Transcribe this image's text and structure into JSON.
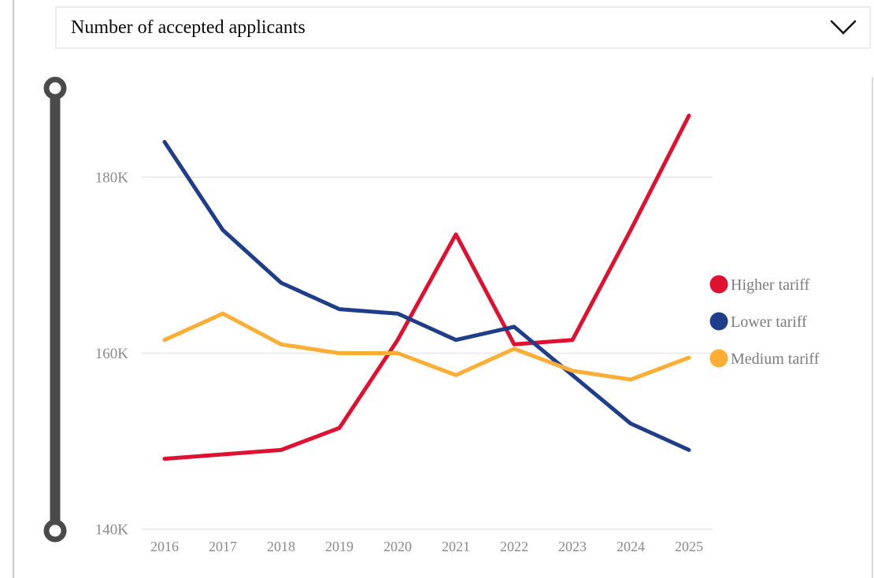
{
  "dropdown": {
    "value": "Number of accepted applicants"
  },
  "slider": {
    "handles": 2,
    "orientation": "vertical",
    "color": "#4a4a4a"
  },
  "chart_data": {
    "type": "line",
    "title": "Number of accepted applicants",
    "unit": "thousands (K)",
    "x": [
      2016,
      2017,
      2018,
      2019,
      2020,
      2021,
      2022,
      2023,
      2024,
      2025
    ],
    "series": [
      {
        "name": "Higher tariff",
        "color": "#e01030",
        "values": [
          148,
          148.5,
          149,
          151.5,
          161.5,
          173.5,
          161,
          161.5,
          174,
          187
        ]
      },
      {
        "name": "Lower tariff",
        "color": "#1e3d8a",
        "values": [
          184,
          174,
          168,
          165,
          164.5,
          161.5,
          163,
          157.5,
          152,
          149
        ]
      },
      {
        "name": "Medium tariff",
        "color": "#fbae33",
        "values": [
          161.5,
          164.5,
          161,
          160,
          160,
          157.5,
          160.5,
          158,
          157,
          159.5
        ]
      }
    ],
    "y_ticks": [
      {
        "value": 140,
        "label": "140K"
      },
      {
        "value": 160,
        "label": "160K"
      },
      {
        "value": 180,
        "label": "180K"
      }
    ],
    "ylim": [
      140,
      191
    ],
    "grid": true,
    "legend_position": "right",
    "gridline_color": "#ececec",
    "axis_text_color": "#8a8a8a",
    "legend_text_color": "#7c7c7c"
  }
}
